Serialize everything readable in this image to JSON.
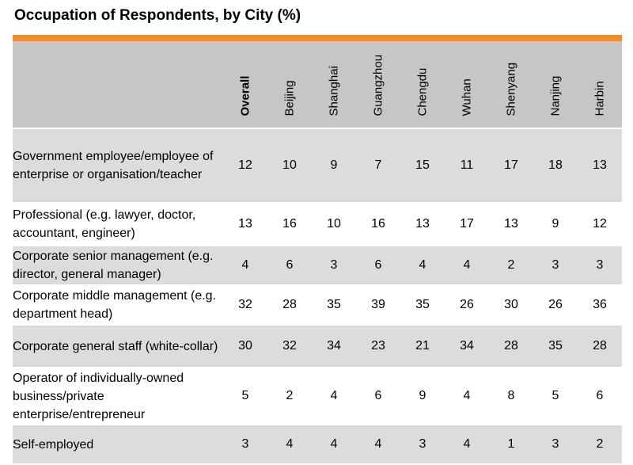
{
  "title": "Occupation of Respondents, by City (%)",
  "colors": {
    "accent": "#f28c28",
    "header_bg": "#c6c6c6",
    "row_shade": "#dcdcdc"
  },
  "chart_data": {
    "type": "table",
    "title": "Occupation of Respondents, by City (%)",
    "columns": [
      "Overall",
      "Beijing",
      "Shanghai",
      "Guangzhou",
      "Chengdu",
      "Wuhan",
      "Shenyang",
      "Nanjing",
      "Harbin"
    ],
    "rows": [
      {
        "label": "Government employee/employee of enterprise or organisation/teacher",
        "values": [
          12,
          10,
          9,
          7,
          15,
          11,
          17,
          18,
          13
        ]
      },
      {
        "label": "Professional (e.g. lawyer, doctor, accountant, engineer)",
        "values": [
          13,
          16,
          10,
          16,
          13,
          17,
          13,
          9,
          12
        ]
      },
      {
        "label": "Corporate senior management (e.g. director, general manager)",
        "values": [
          4,
          6,
          3,
          6,
          4,
          4,
          2,
          3,
          3
        ]
      },
      {
        "label": "Corporate middle management (e.g. department head)",
        "values": [
          32,
          28,
          35,
          39,
          35,
          26,
          30,
          26,
          36
        ]
      },
      {
        "label": "Corporate general staff (white-collar)",
        "values": [
          30,
          32,
          34,
          23,
          21,
          34,
          28,
          35,
          28
        ]
      },
      {
        "label": "Operator of individually-owned business/private enterprise/entrepreneur",
        "values": [
          5,
          2,
          4,
          6,
          9,
          4,
          8,
          5,
          6
        ]
      },
      {
        "label": "Self-employed",
        "values": [
          3,
          4,
          4,
          4,
          3,
          4,
          1,
          3,
          2
        ]
      }
    ]
  }
}
